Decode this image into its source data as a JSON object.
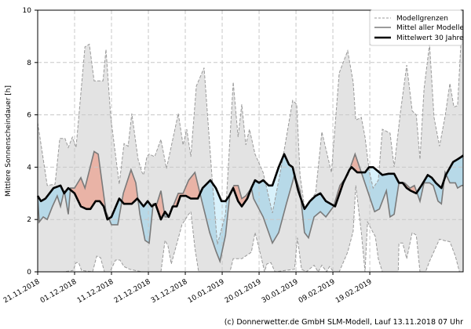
{
  "chart_data": {
    "type": "line",
    "title": "",
    "xlabel": "",
    "ylabel": "Mittlere Sonnenscheindauer [h]",
    "x_unit": "days since 21.11.2018",
    "xlim": [
      0,
      115.3
    ],
    "ylim": [
      0,
      10
    ],
    "yticks": [
      0,
      2,
      4,
      6,
      8,
      10
    ],
    "xticks": [
      {
        "day": 0,
        "label": "21.11.2018"
      },
      {
        "day": 10,
        "label": "01.12.2018"
      },
      {
        "day": 20,
        "label": "11.12.2018"
      },
      {
        "day": 30,
        "label": "21.12.2018"
      },
      {
        "day": 40,
        "label": "31.12.2018"
      },
      {
        "day": 50,
        "label": "10.01.2019"
      },
      {
        "day": 60,
        "label": "20.01.2019"
      },
      {
        "day": 70,
        "label": "30.01.2019"
      },
      {
        "day": 80,
        "label": "09.02.2019"
      },
      {
        "day": 90,
        "label": "19.02.2019"
      }
    ],
    "grid": true,
    "legend_position": "top-right",
    "legend": [
      "Modellgrenzen",
      "Mittel aller Modelle",
      "Mittelwert 30 Jahre"
    ],
    "colors": {
      "band": "#e3e3e3",
      "bound_line": "#9a9a9a",
      "mean_line": "#7a7a7a",
      "climate_line": "#000000",
      "above": "#e9b3a6",
      "below": "#b7d9e8",
      "below_upper": "#d8f1fb"
    },
    "series": {
      "upper": [
        [
          0,
          5.7
        ],
        [
          2.6,
          3.3
        ],
        [
          4.7,
          3.35
        ],
        [
          6.0,
          5.1
        ],
        [
          7.4,
          5.1
        ],
        [
          8.3,
          4.75
        ],
        [
          9.4,
          5.15
        ],
        [
          10.4,
          4.75
        ],
        [
          12.8,
          8.6
        ],
        [
          14.0,
          8.7
        ],
        [
          15.3,
          7.3
        ],
        [
          17.7,
          7.3
        ],
        [
          18.5,
          8.5
        ],
        [
          19.8,
          5.9
        ],
        [
          22.1,
          3.35
        ],
        [
          23.4,
          4.9
        ],
        [
          24.5,
          4.8
        ],
        [
          25.5,
          6.05
        ],
        [
          27.2,
          4.3
        ],
        [
          28.3,
          3.8
        ],
        [
          28.7,
          3.7
        ],
        [
          29.6,
          4.4
        ],
        [
          30.2,
          4.5
        ],
        [
          31.7,
          4.4
        ],
        [
          33.4,
          5.06
        ],
        [
          34.9,
          3.95
        ],
        [
          38.1,
          6.05
        ],
        [
          39.4,
          4.85
        ],
        [
          40.4,
          5.45
        ],
        [
          41.5,
          4.4
        ],
        [
          43.0,
          7.1
        ],
        [
          45.1,
          7.8
        ],
        [
          47.2,
          3.7
        ],
        [
          48.7,
          1.05
        ],
        [
          50.9,
          2.2
        ],
        [
          53.0,
          7.25
        ],
        [
          54.3,
          5.15
        ],
        [
          55.3,
          6.4
        ],
        [
          56.4,
          4.85
        ],
        [
          57.4,
          5.45
        ],
        [
          58.9,
          4.5
        ],
        [
          61.1,
          3.8
        ],
        [
          63.6,
          2.25
        ],
        [
          66.0,
          4.0
        ],
        [
          69.1,
          6.55
        ],
        [
          70.2,
          6.4
        ],
        [
          71.1,
          3.7
        ],
        [
          72.3,
          2.45
        ],
        [
          75.3,
          3.0
        ],
        [
          77.0,
          5.35
        ],
        [
          79.6,
          3.8
        ],
        [
          81.7,
          7.6
        ],
        [
          84.0,
          8.45
        ],
        [
          85.5,
          7.25
        ],
        [
          86.2,
          5.8
        ],
        [
          87.7,
          5.9
        ],
        [
          88.7,
          5.15
        ],
        [
          89.8,
          3.9
        ],
        [
          90.9,
          3.2
        ],
        [
          92.3,
          3.5
        ],
        [
          93.4,
          5.45
        ],
        [
          95.5,
          5.3
        ],
        [
          96.6,
          4.0
        ],
        [
          98.3,
          6.1
        ],
        [
          100.0,
          7.9
        ],
        [
          101.5,
          6.15
        ],
        [
          102.6,
          6.0
        ],
        [
          103.6,
          4.3
        ],
        [
          104.7,
          7.0
        ],
        [
          106.2,
          8.7
        ],
        [
          107.4,
          5.9
        ],
        [
          108.9,
          4.8
        ],
        [
          110.4,
          5.95
        ],
        [
          111.7,
          7.2
        ],
        [
          112.8,
          6.3
        ],
        [
          113.8,
          6.35
        ],
        [
          114.9,
          9.3
        ],
        [
          115.3,
          9.5
        ]
      ],
      "lower": [
        [
          0,
          0
        ],
        [
          7.0,
          0
        ],
        [
          9.6,
          0.05
        ],
        [
          10.4,
          0.35
        ],
        [
          11.1,
          0.35
        ],
        [
          11.9,
          0.05
        ],
        [
          14.9,
          0
        ],
        [
          16.0,
          0.6
        ],
        [
          17.0,
          0.55
        ],
        [
          18.1,
          0
        ],
        [
          19.6,
          0
        ],
        [
          21.1,
          0.45
        ],
        [
          22.3,
          0.45
        ],
        [
          23.4,
          0.2
        ],
        [
          24.9,
          0.1
        ],
        [
          28.1,
          0
        ],
        [
          33.4,
          0
        ],
        [
          34.5,
          1.2
        ],
        [
          35.3,
          1.0
        ],
        [
          36.2,
          0.3
        ],
        [
          39.1,
          1.8
        ],
        [
          40.9,
          2.2
        ],
        [
          41.5,
          2.3
        ],
        [
          42.6,
          0.9
        ],
        [
          43.6,
          0
        ],
        [
          52.1,
          0
        ],
        [
          53.0,
          0.5
        ],
        [
          55.3,
          0.5
        ],
        [
          57.9,
          0.75
        ],
        [
          58.9,
          1.5
        ],
        [
          60.0,
          0.9
        ],
        [
          61.5,
          0
        ],
        [
          62.1,
          0.3
        ],
        [
          63.2,
          0.35
        ],
        [
          64.3,
          0
        ],
        [
          69.6,
          0.1
        ],
        [
          70.4,
          1.3
        ],
        [
          71.5,
          0.1
        ],
        [
          72.8,
          0
        ],
        [
          74.9,
          0.25
        ],
        [
          76.0,
          0
        ],
        [
          77.0,
          0.25
        ],
        [
          78.3,
          0
        ],
        [
          79.1,
          0.2
        ],
        [
          80.2,
          0
        ],
        [
          81.7,
          0
        ],
        [
          84.0,
          0.75
        ],
        [
          85.5,
          1.55
        ],
        [
          86.2,
          3.3
        ],
        [
          87.7,
          1.5
        ],
        [
          88.7,
          0
        ],
        [
          89.4,
          1.9
        ],
        [
          90.9,
          1.5
        ],
        [
          91.5,
          1.35
        ],
        [
          92.3,
          0.5
        ],
        [
          93.4,
          0
        ],
        [
          97.7,
          0
        ],
        [
          97.9,
          1.1
        ],
        [
          98.9,
          1.1
        ],
        [
          100.0,
          0.5
        ],
        [
          101.5,
          1.5
        ],
        [
          102.6,
          1.4
        ],
        [
          103.6,
          0
        ],
        [
          105.1,
          0
        ],
        [
          106.2,
          0.4
        ],
        [
          108.9,
          1.25
        ],
        [
          110.0,
          1.2
        ],
        [
          111.7,
          1.15
        ],
        [
          113.2,
          0.6
        ],
        [
          114.3,
          0
        ],
        [
          115.3,
          0
        ]
      ],
      "mean": [
        [
          0,
          2.9
        ],
        [
          0.4,
          1.9
        ],
        [
          1.5,
          2.1
        ],
        [
          2.6,
          2.0
        ],
        [
          4.0,
          2.5
        ],
        [
          5.3,
          2.9
        ],
        [
          6.2,
          2.5
        ],
        [
          7.2,
          3.1
        ],
        [
          8.3,
          2.2
        ],
        [
          8.9,
          3.2
        ],
        [
          10.0,
          3.2
        ],
        [
          11.7,
          3.6
        ],
        [
          12.8,
          3.2
        ],
        [
          15.3,
          4.6
        ],
        [
          16.4,
          4.5
        ],
        [
          18.5,
          2.3
        ],
        [
          20.0,
          1.8
        ],
        [
          21.7,
          1.8
        ],
        [
          23.2,
          3.0
        ],
        [
          25.3,
          3.9
        ],
        [
          26.6,
          3.4
        ],
        [
          27.7,
          2.2
        ],
        [
          29.1,
          1.2
        ],
        [
          30.2,
          1.1
        ],
        [
          31.3,
          2.6
        ],
        [
          32.3,
          2.6
        ],
        [
          33.4,
          3.1
        ],
        [
          34.5,
          2.1
        ],
        [
          35.5,
          2.1
        ],
        [
          38.1,
          3.0
        ],
        [
          39.4,
          3.0
        ],
        [
          40.9,
          3.5
        ],
        [
          42.6,
          3.8
        ],
        [
          44.5,
          2.7
        ],
        [
          46.6,
          1.5
        ],
        [
          48.3,
          0.8
        ],
        [
          49.4,
          0.4
        ],
        [
          50.9,
          1.4
        ],
        [
          52.1,
          3.0
        ],
        [
          53.2,
          3.3
        ],
        [
          54.3,
          3.3
        ],
        [
          55.3,
          2.8
        ],
        [
          56.4,
          2.9
        ],
        [
          57.9,
          3.2
        ],
        [
          58.5,
          2.8
        ],
        [
          61.1,
          2.1
        ],
        [
          63.6,
          1.1
        ],
        [
          65.3,
          1.5
        ],
        [
          67.4,
          2.6
        ],
        [
          69.6,
          3.7
        ],
        [
          71.1,
          3.1
        ],
        [
          72.3,
          1.5
        ],
        [
          73.4,
          1.3
        ],
        [
          74.9,
          2.1
        ],
        [
          76.6,
          2.3
        ],
        [
          78.1,
          2.1
        ],
        [
          80.2,
          2.5
        ],
        [
          81.9,
          3.3
        ],
        [
          84.0,
          3.7
        ],
        [
          86.0,
          4.5
        ],
        [
          87.7,
          3.8
        ],
        [
          89.4,
          3.1
        ],
        [
          91.3,
          2.3
        ],
        [
          92.6,
          2.4
        ],
        [
          93.4,
          2.7
        ],
        [
          94.5,
          3.1
        ],
        [
          95.5,
          2.1
        ],
        [
          96.6,
          2.2
        ],
        [
          97.9,
          3.4
        ],
        [
          99.4,
          3.4
        ],
        [
          100.9,
          3.2
        ],
        [
          102.1,
          3.3
        ],
        [
          103.6,
          2.7
        ],
        [
          104.7,
          3.4
        ],
        [
          106.2,
          3.4
        ],
        [
          107.2,
          3.3
        ],
        [
          108.5,
          2.7
        ],
        [
          109.4,
          2.6
        ],
        [
          110.4,
          3.8
        ],
        [
          111.7,
          3.4
        ],
        [
          113.2,
          3.4
        ],
        [
          113.8,
          3.2
        ],
        [
          114.9,
          3.3
        ],
        [
          115.3,
          3.3
        ]
      ],
      "climate": [
        [
          0,
          2.9
        ],
        [
          0.9,
          2.7
        ],
        [
          2.1,
          2.8
        ],
        [
          4.3,
          3.2
        ],
        [
          6.2,
          3.3
        ],
        [
          7.2,
          3.0
        ],
        [
          8.3,
          3.2
        ],
        [
          10.0,
          3.0
        ],
        [
          11.7,
          2.5
        ],
        [
          13.2,
          2.4
        ],
        [
          14.3,
          2.4
        ],
        [
          15.7,
          2.7
        ],
        [
          16.8,
          2.7
        ],
        [
          17.9,
          2.5
        ],
        [
          18.9,
          2.0
        ],
        [
          20.0,
          2.1
        ],
        [
          22.1,
          2.8
        ],
        [
          23.4,
          2.6
        ],
        [
          25.5,
          2.6
        ],
        [
          27.0,
          2.8
        ],
        [
          28.7,
          2.5
        ],
        [
          29.8,
          2.7
        ],
        [
          30.9,
          2.5
        ],
        [
          31.9,
          2.6
        ],
        [
          33.4,
          2.0
        ],
        [
          34.5,
          2.3
        ],
        [
          35.5,
          2.1
        ],
        [
          36.6,
          2.5
        ],
        [
          37.7,
          2.5
        ],
        [
          38.7,
          2.9
        ],
        [
          40.2,
          2.9
        ],
        [
          41.5,
          2.8
        ],
        [
          43.4,
          2.8
        ],
        [
          44.7,
          3.2
        ],
        [
          46.8,
          3.5
        ],
        [
          48.3,
          3.2
        ],
        [
          49.8,
          2.7
        ],
        [
          50.9,
          2.7
        ],
        [
          51.9,
          2.9
        ],
        [
          53.0,
          3.2
        ],
        [
          54.3,
          2.7
        ],
        [
          55.3,
          2.5
        ],
        [
          56.8,
          2.8
        ],
        [
          57.9,
          3.2
        ],
        [
          58.9,
          3.5
        ],
        [
          60.0,
          3.4
        ],
        [
          61.1,
          3.5
        ],
        [
          62.6,
          3.3
        ],
        [
          63.6,
          3.3
        ],
        [
          65.3,
          4.0
        ],
        [
          66.8,
          4.5
        ],
        [
          68.1,
          4.1
        ],
        [
          69.1,
          4.0
        ],
        [
          70.6,
          3.1
        ],
        [
          72.3,
          2.4
        ],
        [
          73.8,
          2.7
        ],
        [
          75.3,
          2.9
        ],
        [
          76.6,
          3.0
        ],
        [
          78.1,
          2.7
        ],
        [
          80.6,
          2.5
        ],
        [
          82.8,
          3.4
        ],
        [
          84.5,
          3.9
        ],
        [
          85.1,
          4.0
        ],
        [
          86.6,
          3.8
        ],
        [
          88.7,
          3.8
        ],
        [
          89.8,
          4.0
        ],
        [
          90.9,
          4.0
        ],
        [
          93.4,
          3.7
        ],
        [
          95.1,
          3.75
        ],
        [
          96.6,
          3.75
        ],
        [
          97.9,
          3.4
        ],
        [
          98.9,
          3.4
        ],
        [
          100.0,
          3.2
        ],
        [
          101.1,
          3.1
        ],
        [
          102.6,
          3.0
        ],
        [
          104.0,
          3.3
        ],
        [
          105.7,
          3.7
        ],
        [
          106.8,
          3.6
        ],
        [
          107.9,
          3.4
        ],
        [
          109.4,
          3.2
        ],
        [
          110.6,
          3.7
        ],
        [
          112.6,
          4.2
        ],
        [
          113.8,
          4.3
        ],
        [
          114.9,
          4.4
        ],
        [
          115.3,
          4.45
        ]
      ]
    }
  },
  "credit": "(c) Donnerwetter.de GmbH SLM-Modell, Lauf 13.11.2018 07 Uhr"
}
